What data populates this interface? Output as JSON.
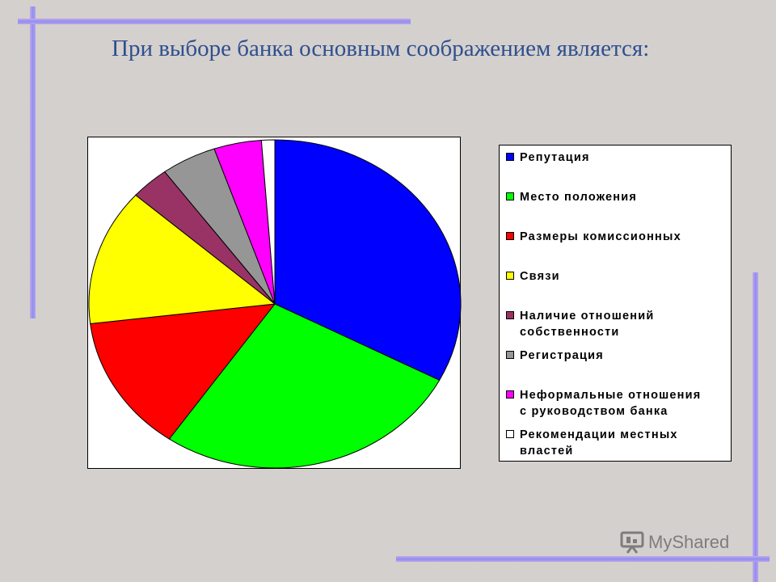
{
  "title": "При выборе банка основным соображением является:",
  "watermark": "MyShared",
  "chart_data": {
    "type": "pie",
    "title": "",
    "legend_position": "right",
    "slices": [
      {
        "label": "Репутация",
        "value": 34.0,
        "color": "#0000ff"
      },
      {
        "label": "Место положения",
        "value": 28.0,
        "color": "#00ff00"
      },
      {
        "label": "Размеры комиссионных",
        "value": 14.0,
        "color": "#ff0000"
      },
      {
        "label": "Связи",
        "value": 14.0,
        "color": "#ffff00"
      },
      {
        "label": "Наличие отношений\nсобственности",
        "value": 3.5,
        "color": "#993366"
      },
      {
        "label": "Регистрация",
        "value": 5.0,
        "color": "#969696"
      },
      {
        "label": "Неформальные отношения\nс руководством банка",
        "value": 4.3,
        "color": "#ff00ff"
      },
      {
        "label": "Рекомендации местных\nвластей",
        "value": 1.2,
        "color": "#ffffff"
      }
    ]
  }
}
